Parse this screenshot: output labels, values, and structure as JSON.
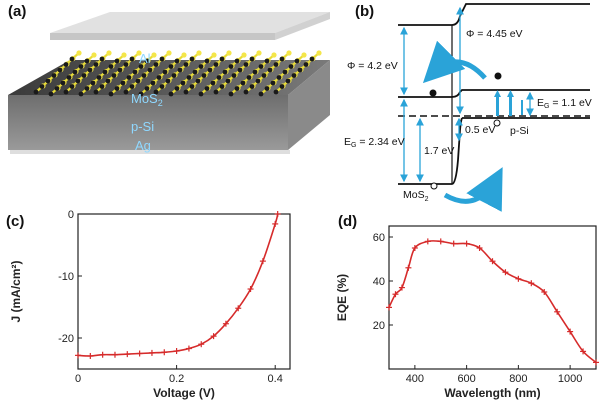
{
  "panels": {
    "a": {
      "label": "(a)",
      "layers": [
        "Al",
        "MoS",
        "p-Si",
        "Ag"
      ],
      "mos2_sub": "2"
    },
    "b": {
      "label": "(b)",
      "phi_mos2": "Φ = 4.2 eV",
      "phi_si": "Φ = 4.45 eV",
      "eg_mos2_prefix": "E",
      "eg_mos2_sub": "G",
      "eg_mos2_value": " = 2.34 eV",
      "eg_si_prefix": "E",
      "eg_si_sub": "G",
      "eg_si_value": " = 1.1 eV",
      "offset_1": "1.7 eV",
      "offset_2": "0.5 eV",
      "mos2_label": "MoS",
      "mos2_sub": "2",
      "si_label": "p-Si"
    }
  },
  "colors": {
    "curve": "#d62b2b",
    "arrow": "#2aa3d8",
    "layer_text": "#8fd8ff"
  },
  "chart_data": [
    {
      "panel": "(c)",
      "type": "line",
      "xlabel": "Voltage (V)",
      "ylabel": "J (mA/cm²)",
      "xlim": [
        0,
        0.43
      ],
      "ylim": [
        -25,
        0
      ],
      "xticks": [
        0,
        0.2,
        0.4
      ],
      "xtick_labels": [
        "0",
        "0.2",
        "0.4"
      ],
      "yticks": [
        -20,
        -10,
        0
      ],
      "ytick_labels": [
        "-20",
        "-10",
        "0"
      ],
      "x": [
        0,
        0.025,
        0.05,
        0.075,
        0.1,
        0.125,
        0.15,
        0.175,
        0.2,
        0.225,
        0.25,
        0.275,
        0.3,
        0.325,
        0.35,
        0.375,
        0.4,
        0.405
      ],
      "y": [
        -22.8,
        -22.9,
        -22.7,
        -22.7,
        -22.6,
        -22.5,
        -22.4,
        -22.3,
        -22.1,
        -21.7,
        -21.0,
        -19.7,
        -17.7,
        -15.2,
        -12.1,
        -7.6,
        -1.6,
        0
      ]
    },
    {
      "panel": "(d)",
      "type": "line",
      "xlabel": "Wavelength (nm)",
      "ylabel": "EQE (%)",
      "xlim": [
        300,
        1100
      ],
      "ylim": [
        0,
        65
      ],
      "xticks": [
        400,
        600,
        800,
        1000
      ],
      "xtick_labels": [
        "400",
        "600",
        "800",
        "1000"
      ],
      "yticks": [
        20,
        40,
        60
      ],
      "ytick_labels": [
        "20",
        "40",
        "60"
      ],
      "x": [
        300,
        325,
        350,
        375,
        400,
        450,
        500,
        550,
        600,
        650,
        700,
        750,
        800,
        850,
        900,
        950,
        1000,
        1050,
        1100
      ],
      "y": [
        28,
        34,
        37,
        46,
        55,
        58,
        58,
        57,
        57,
        55,
        49,
        44,
        41,
        39,
        35,
        26,
        17,
        8,
        3
      ]
    }
  ]
}
